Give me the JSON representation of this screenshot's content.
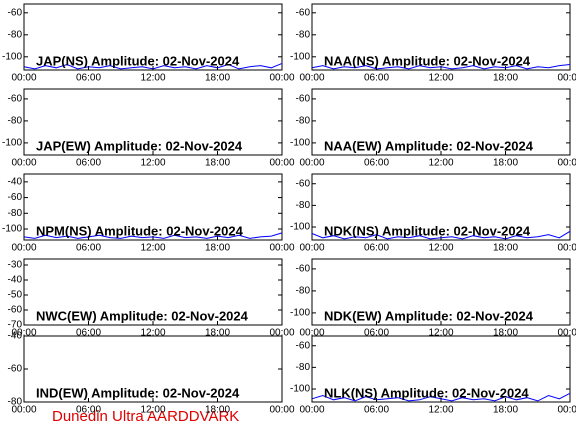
{
  "chart_data": [
    {
      "type": "line",
      "title": "JAP(NS) Amplitude: 02-Nov-2024",
      "ylim": [
        -112,
        -52
      ],
      "yticks": [
        -60,
        -80,
        -100
      ],
      "xlim": [
        0,
        24
      ],
      "xticks": [
        {
          "value": 0,
          "label": "00:00"
        },
        {
          "value": 6,
          "label": "06:00"
        },
        {
          "value": 12,
          "label": "12:00"
        },
        {
          "value": 18,
          "label": "18:00"
        },
        {
          "value": 24,
          "label": "00:00"
        }
      ],
      "x": [
        0,
        1,
        2,
        3,
        4,
        5,
        6,
        7,
        8,
        9,
        10,
        11,
        12,
        13,
        14,
        15,
        16,
        17,
        18,
        19,
        20,
        21,
        22,
        23,
        24
      ],
      "values": [
        -109,
        -111,
        -108,
        -110,
        -107,
        -111,
        -109,
        -110,
        -108,
        -111,
        -110,
        -109,
        -111,
        -108,
        -110,
        -109,
        -111,
        -108,
        -110,
        -107,
        -111,
        -109,
        -108,
        -110,
        -106
      ],
      "color": "#0000ff"
    },
    {
      "type": "line",
      "title": "NAA(NS) Amplitude: 02-Nov-2024",
      "ylim": [
        -112,
        -52
      ],
      "yticks": [
        -60,
        -80,
        -100
      ],
      "xlim": [
        0,
        24
      ],
      "xticks": [
        {
          "value": 0,
          "label": "00:00"
        },
        {
          "value": 6,
          "label": "06:00"
        },
        {
          "value": 12,
          "label": "12:00"
        },
        {
          "value": 18,
          "label": "18:00"
        },
        {
          "value": 24,
          "label": "00:00"
        }
      ],
      "x": [
        0,
        1,
        2,
        3,
        4,
        5,
        6,
        7,
        8,
        9,
        10,
        11,
        12,
        13,
        14,
        15,
        16,
        17,
        18,
        19,
        20,
        21,
        22,
        23,
        24
      ],
      "values": [
        -110,
        -108,
        -111,
        -109,
        -110,
        -108,
        -111,
        -110,
        -109,
        -111,
        -108,
        -110,
        -109,
        -111,
        -110,
        -108,
        -111,
        -109,
        -110,
        -108,
        -111,
        -109,
        -110,
        -108,
        -107
      ],
      "color": "#0000ff"
    },
    {
      "type": "line",
      "title": "JAP(EW) Amplitude: 02-Nov-2024",
      "ylim": [
        -111,
        -51
      ],
      "yticks": [
        -60,
        -80,
        -100
      ],
      "xlim": [
        0,
        24
      ],
      "xticks": [
        {
          "value": 0,
          "label": "00:00"
        },
        {
          "value": 6,
          "label": "06:00"
        },
        {
          "value": 12,
          "label": "12:00"
        },
        {
          "value": 18,
          "label": "18:00"
        },
        {
          "value": 24,
          "label": "00:00"
        }
      ]
    },
    {
      "type": "line",
      "title": "NAA(EW) Amplitude: 02-Nov-2024",
      "ylim": [
        -111,
        -51
      ],
      "yticks": [
        -60,
        -80,
        -100
      ],
      "xlim": [
        0,
        24
      ],
      "xticks": [
        {
          "value": 0,
          "label": "00:00"
        },
        {
          "value": 6,
          "label": "06:00"
        },
        {
          "value": 12,
          "label": "12:00"
        },
        {
          "value": 18,
          "label": "18:00"
        },
        {
          "value": 24,
          "label": "00:00"
        }
      ]
    },
    {
      "type": "line",
      "title": "NPM(NS) Amplitude: 02-Nov-2024",
      "ylim": [
        -114,
        -30
      ],
      "yticks": [
        -40,
        -60,
        -80,
        -100
      ],
      "xlim": [
        0,
        24
      ],
      "xticks": [
        {
          "value": 0,
          "label": "00:00"
        },
        {
          "value": 6,
          "label": "06:00"
        },
        {
          "value": 12,
          "label": "12:00"
        },
        {
          "value": 18,
          "label": "18:00"
        },
        {
          "value": 24,
          "label": "00:00"
        }
      ],
      "x": [
        0,
        1,
        2,
        3,
        4,
        5,
        6,
        7,
        8,
        9,
        10,
        11,
        12,
        13,
        14,
        15,
        16,
        17,
        18,
        19,
        20,
        21,
        22,
        23,
        24
      ],
      "values": [
        -110,
        -112,
        -108,
        -111,
        -109,
        -112,
        -110,
        -108,
        -111,
        -112,
        -109,
        -111,
        -110,
        -112,
        -108,
        -111,
        -110,
        -112,
        -109,
        -111,
        -108,
        -112,
        -110,
        -109,
        -105
      ],
      "color": "#0000ff"
    },
    {
      "type": "line",
      "title": "NDK(NS) Amplitude: 02-Nov-2024",
      "ylim": [
        -112,
        -51
      ],
      "yticks": [
        -60,
        -80,
        -100
      ],
      "xlim": [
        0,
        24
      ],
      "xticks": [
        {
          "value": 0,
          "label": "00:00"
        },
        {
          "value": 6,
          "label": "06:00"
        },
        {
          "value": 12,
          "label": "12:00"
        },
        {
          "value": 18,
          "label": "18:00"
        },
        {
          "value": 24,
          "label": "00:00"
        }
      ],
      "x": [
        0,
        1,
        2,
        3,
        4,
        5,
        6,
        7,
        8,
        9,
        10,
        11,
        12,
        13,
        14,
        15,
        16,
        17,
        18,
        19,
        20,
        21,
        22,
        23,
        24
      ],
      "values": [
        -106,
        -110,
        -108,
        -111,
        -109,
        -110,
        -107,
        -111,
        -109,
        -110,
        -108,
        -111,
        -110,
        -109,
        -111,
        -108,
        -110,
        -109,
        -111,
        -108,
        -110,
        -109,
        -107,
        -110,
        -104
      ],
      "color": "#0000ff"
    },
    {
      "type": "line",
      "title": "NWC(EW) Amplitude: 02-Nov-2024",
      "ylim": [
        -70,
        -26
      ],
      "yticks": [
        -30,
        -40,
        -50,
        -60,
        -70
      ],
      "xlim": [
        0,
        24
      ],
      "xticks": [
        {
          "value": 0,
          "label": "00:00"
        },
        {
          "value": 6,
          "label": "06:00"
        },
        {
          "value": 12,
          "label": "12:00"
        },
        {
          "value": 18,
          "label": "18:00"
        },
        {
          "value": 24,
          "label": "00:00"
        }
      ]
    },
    {
      "type": "line",
      "title": "NDK(EW) Amplitude: 02-Nov-2024",
      "ylim": [
        -111,
        -51
      ],
      "yticks": [
        -60,
        -80,
        -100
      ],
      "xlim": [
        0,
        24
      ],
      "xticks": [
        {
          "value": 0,
          "label": "00:00"
        },
        {
          "value": 6,
          "label": "06:00"
        },
        {
          "value": 12,
          "label": "12:00"
        },
        {
          "value": 18,
          "label": "18:00"
        },
        {
          "value": 24,
          "label": "00:00"
        }
      ]
    },
    {
      "type": "line",
      "title": "IND(EW) Amplitude: 02-Nov-2024",
      "ylim": [
        -80,
        -40
      ],
      "yticks": [
        -40,
        -60,
        -80
      ],
      "xlim": [
        0,
        24
      ],
      "xticks": [
        {
          "value": 0,
          "label": "00:00"
        },
        {
          "value": 6,
          "label": "06:00"
        },
        {
          "value": 12,
          "label": "12:00"
        },
        {
          "value": 18,
          "label": "18:00"
        },
        {
          "value": 24,
          "label": "00:00"
        }
      ]
    },
    {
      "type": "line",
      "title": "NLK(NS) Amplitude: 02-Nov-2024",
      "ylim": [
        -112,
        -51
      ],
      "yticks": [
        -60,
        -80,
        -100
      ],
      "xlim": [
        0,
        24
      ],
      "xticks": [
        {
          "value": 0,
          "label": "00:00"
        },
        {
          "value": 6,
          "label": "06:00"
        },
        {
          "value": 12,
          "label": "12:00"
        },
        {
          "value": 18,
          "label": "18:00"
        },
        {
          "value": 24,
          "label": "00:00"
        }
      ],
      "x": [
        0,
        1,
        2,
        3,
        4,
        5,
        6,
        7,
        8,
        9,
        10,
        11,
        12,
        13,
        14,
        15,
        16,
        17,
        18,
        19,
        20,
        21,
        22,
        23,
        24
      ],
      "values": [
        -109,
        -106,
        -110,
        -108,
        -111,
        -107,
        -110,
        -109,
        -108,
        -111,
        -110,
        -107,
        -109,
        -111,
        -108,
        -110,
        -109,
        -111,
        -107,
        -110,
        -108,
        -111,
        -106,
        -109,
        -104
      ],
      "color": "#0000ff"
    }
  ],
  "footer": "Dunedin Ultra AARDDVARK"
}
